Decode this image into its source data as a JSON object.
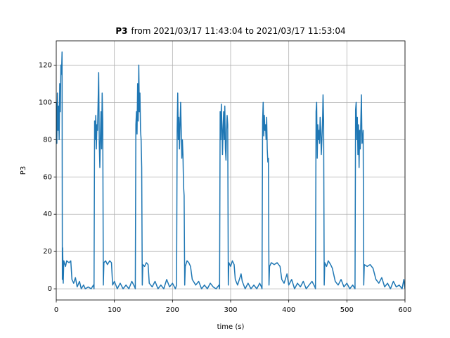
{
  "chart_data": {
    "type": "line",
    "title_prefix": "P3",
    "title": "from 2021/03/17 11:43:04 to 2021/03/17 11:53:04",
    "xlabel": "time (s)",
    "ylabel": "P3",
    "xlim": [
      0,
      600
    ],
    "ylim": [
      -6,
      133
    ],
    "xticks": [
      0,
      100,
      200,
      300,
      400,
      500,
      600
    ],
    "yticks": [
      0,
      20,
      40,
      60,
      80,
      100,
      120
    ],
    "grid": true,
    "series": [
      {
        "name": "P3",
        "color": "#1f77b4",
        "x": [
          0,
          1,
          2,
          3,
          4,
          5,
          6,
          7,
          8,
          9,
          10,
          10.5,
          11,
          12,
          13,
          16,
          18,
          22,
          25,
          27,
          30,
          33,
          36,
          40,
          43,
          47,
          50,
          55,
          60,
          64,
          65,
          66,
          67,
          68,
          69,
          70,
          71,
          72,
          73,
          74,
          75,
          76,
          77,
          78,
          79,
          80,
          81,
          82,
          85,
          88,
          92,
          95,
          97,
          100,
          105,
          110,
          115,
          120,
          125,
          130,
          135,
          136,
          137,
          138,
          139,
          140,
          141,
          142,
          143,
          144,
          145,
          146,
          147,
          148,
          149,
          152,
          155,
          158,
          160,
          165,
          170,
          175,
          180,
          185,
          190,
          195,
          200,
          205,
          207,
          208,
          209,
          210,
          211,
          212,
          213,
          214,
          215,
          216,
          217,
          218,
          219,
          220,
          221,
          222,
          225,
          228,
          231,
          234,
          240,
          245,
          250,
          255,
          260,
          265,
          270,
          275,
          280,
          281,
          282,
          283,
          284,
          285,
          286,
          287,
          288,
          289,
          290,
          291,
          292,
          293,
          294,
          295,
          296,
          297,
          300,
          303,
          306,
          308,
          312,
          318,
          320,
          325,
          330,
          335,
          340,
          345,
          350,
          353,
          354,
          355,
          356,
          357,
          358,
          359,
          360,
          361,
          362,
          363,
          364,
          365,
          366,
          367,
          370,
          375,
          380,
          385,
          388,
          392,
          397,
          400,
          405,
          410,
          415,
          420,
          425,
          430,
          435,
          440,
          445,
          446,
          447,
          448,
          449,
          450,
          451,
          452,
          453,
          454,
          455,
          456,
          457,
          458,
          459,
          460,
          461,
          462,
          465,
          468,
          472,
          475,
          480,
          485,
          490,
          495,
          500,
          505,
          510,
          514,
          515,
          516,
          517,
          518,
          519,
          520,
          521,
          522,
          523,
          524,
          525,
          526,
          527,
          528,
          529,
          530,
          535,
          540,
          545,
          550,
          555,
          560,
          565,
          570,
          575,
          580,
          585,
          590,
          595,
          598,
          600
        ],
        "values": [
          100,
          78,
          105,
          85,
          98,
          80,
          110,
          95,
          120,
          115,
          127,
          5,
          22,
          3,
          15,
          12,
          15,
          14,
          15,
          5,
          3,
          6,
          1,
          4,
          0,
          2,
          0,
          1,
          0,
          2,
          0,
          90,
          80,
          93,
          75,
          88,
          85,
          100,
          116,
          78,
          65,
          82,
          95,
          75,
          105,
          90,
          2,
          14,
          15,
          13,
          15,
          14,
          2,
          4,
          0,
          3,
          0,
          2,
          0,
          4,
          1,
          0,
          88,
          95,
          83,
          110,
          90,
          120,
          95,
          105,
          85,
          80,
          65,
          2,
          13,
          12,
          14,
          13,
          3,
          1,
          4,
          0,
          2,
          0,
          5,
          1,
          3,
          0,
          2,
          85,
          105,
          80,
          92,
          75,
          88,
          100,
          85,
          70,
          80,
          72,
          55,
          50,
          2,
          12,
          15,
          14,
          12,
          5,
          2,
          4,
          0,
          2,
          0,
          3,
          1,
          0,
          2,
          0,
          95,
          80,
          99,
          88,
          72,
          85,
          95,
          80,
          98,
          75,
          69,
          85,
          93,
          88,
          2,
          14,
          12,
          15,
          13,
          5,
          2,
          8,
          4,
          0,
          3,
          0,
          2,
          0,
          3,
          1,
          0,
          90,
          100,
          82,
          93,
          85,
          88,
          80,
          92,
          75,
          68,
          70,
          2,
          12,
          14,
          13,
          14,
          12,
          5,
          3,
          8,
          2,
          5,
          0,
          3,
          1,
          4,
          0,
          2,
          4,
          1,
          0,
          95,
          100,
          70,
          88,
          80,
          85,
          78,
          92,
          85,
          72,
          80,
          88,
          104,
          90,
          2,
          14,
          12,
          15,
          13,
          11,
          4,
          2,
          5,
          1,
          3,
          0,
          2,
          0,
          96,
          100,
          80,
          92,
          72,
          88,
          65,
          85,
          75,
          90,
          104,
          78,
          80,
          85,
          2,
          13,
          12,
          13,
          11,
          5,
          3,
          6,
          1,
          3,
          0,
          4,
          1,
          2,
          0,
          5,
          0
        ]
      }
    ]
  }
}
